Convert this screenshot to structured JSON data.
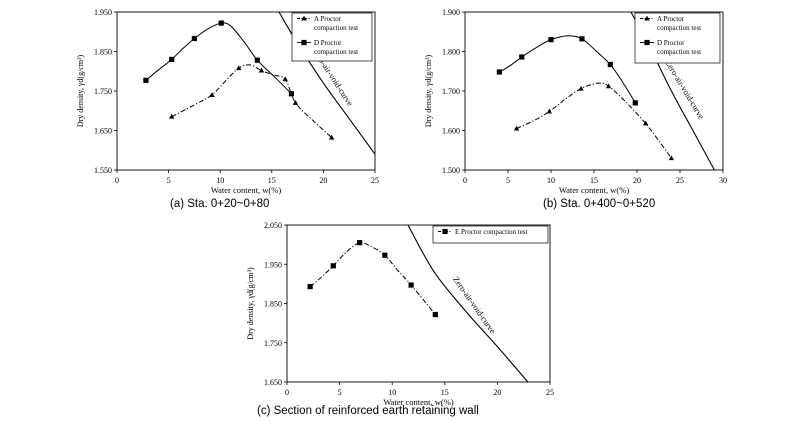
{
  "chart_data": [
    {
      "type": "line",
      "caption": "(a) Sta. 0+20~0+80",
      "xlabel": "Water content, w(%)",
      "ylabel": "Dry density, γd(g/cm³)",
      "xlim": [
        0,
        25
      ],
      "ylim": [
        1.55,
        1.95
      ],
      "xticks": [
        "0",
        "5",
        "10",
        "15",
        "20",
        "25"
      ],
      "yticks": [
        "1.550",
        "1.650",
        "1.750",
        "1.850",
        "1.950"
      ],
      "zav_label": "Zero-air-void-curve",
      "zav_curve": [
        [
          15.7,
          1.95
        ],
        [
          17.5,
          1.87
        ],
        [
          20.0,
          1.77
        ],
        [
          22.5,
          1.68
        ],
        [
          25.0,
          1.59
        ]
      ],
      "series": [
        {
          "name": "A Proctor compaction test",
          "legend_lines": [
            "A Proctor",
            "compaction test"
          ],
          "marker": "triangle",
          "style": "dashdot",
          "points": [
            [
              5.3,
              1.685
            ],
            [
              9.2,
              1.74
            ],
            [
              11.8,
              1.808
            ],
            [
              14.0,
              1.802
            ],
            [
              16.3,
              1.78
            ],
            [
              17.3,
              1.72
            ],
            [
              20.8,
              1.632
            ]
          ],
          "smooth": [
            [
              5.3,
              1.685
            ],
            [
              7.5,
              1.715
            ],
            [
              9.2,
              1.74
            ],
            [
              10.5,
              1.775
            ],
            [
              11.8,
              1.808
            ],
            [
              12.9,
              1.816
            ],
            [
              14.0,
              1.802
            ],
            [
              15.2,
              1.79
            ],
            [
              16.3,
              1.78
            ],
            [
              17.3,
              1.72
            ],
            [
              19.0,
              1.675
            ],
            [
              20.8,
              1.632
            ]
          ]
        },
        {
          "name": "D Proctor compaction test",
          "legend_lines": [
            "D Proctor",
            "compaction test"
          ],
          "marker": "square",
          "style": "solid",
          "points": [
            [
              2.8,
              1.777
            ],
            [
              5.3,
              1.83
            ],
            [
              7.5,
              1.883
            ],
            [
              10.1,
              1.922
            ],
            [
              13.6,
              1.828
            ],
            [
              16.9,
              1.743
            ]
          ],
          "smooth": [
            [
              2.8,
              1.777
            ],
            [
              4.0,
              1.803
            ],
            [
              5.3,
              1.83
            ],
            [
              6.4,
              1.858
            ],
            [
              7.5,
              1.883
            ],
            [
              8.8,
              1.907
            ],
            [
              10.1,
              1.922
            ],
            [
              11.0,
              1.915
            ],
            [
              12.3,
              1.875
            ],
            [
              13.6,
              1.828
            ],
            [
              15.3,
              1.785
            ],
            [
              16.9,
              1.743
            ]
          ]
        }
      ]
    },
    {
      "type": "line",
      "caption": "(b) Sta. 0+400~0+520",
      "xlabel": "Water content, w(%)",
      "ylabel": "Dry density, γd(g/cm³)",
      "xlim": [
        0,
        30
      ],
      "ylim": [
        1.5,
        1.9
      ],
      "xticks": [
        "0",
        "5",
        "10",
        "15",
        "20",
        "25",
        "30"
      ],
      "yticks": [
        "1.500",
        "1.600",
        "1.700",
        "1.800",
        "1.900"
      ],
      "zav_label": "Zero-air-void-curve",
      "zav_curve": [
        [
          19.3,
          1.9
        ],
        [
          21.5,
          1.81
        ],
        [
          24.0,
          1.7
        ],
        [
          26.5,
          1.6
        ],
        [
          29.0,
          1.5
        ]
      ],
      "series": [
        {
          "name": "A Proctor compaction test",
          "legend_lines": [
            "A Proctor",
            "compaction test"
          ],
          "marker": "triangle",
          "style": "dashdot",
          "points": [
            [
              6.0,
              1.605
            ],
            [
              9.8,
              1.648
            ],
            [
              13.5,
              1.706
            ],
            [
              16.7,
              1.712
            ],
            [
              21.0,
              1.618
            ],
            [
              24.0,
              1.53
            ]
          ],
          "smooth": [
            [
              6.0,
              1.605
            ],
            [
              8.0,
              1.625
            ],
            [
              9.8,
              1.648
            ],
            [
              11.7,
              1.68
            ],
            [
              13.5,
              1.706
            ],
            [
              15.5,
              1.72
            ],
            [
              16.7,
              1.712
            ],
            [
              18.8,
              1.67
            ],
            [
              21.0,
              1.618
            ],
            [
              22.5,
              1.575
            ],
            [
              24.0,
              1.53
            ]
          ]
        },
        {
          "name": "D Proctor compaction test",
          "legend_lines": [
            "D Proctor",
            "compaction test"
          ],
          "marker": "square",
          "style": "solid",
          "points": [
            [
              4.0,
              1.748
            ],
            [
              6.6,
              1.786
            ],
            [
              10.0,
              1.83
            ],
            [
              13.6,
              1.832
            ],
            [
              16.9,
              1.767
            ],
            [
              19.8,
              1.67
            ]
          ],
          "smooth": [
            [
              4.0,
              1.748
            ],
            [
              5.3,
              1.765
            ],
            [
              6.6,
              1.786
            ],
            [
              8.3,
              1.81
            ],
            [
              10.0,
              1.83
            ],
            [
              12.0,
              1.84
            ],
            [
              13.6,
              1.832
            ],
            [
              15.3,
              1.8
            ],
            [
              16.9,
              1.767
            ],
            [
              18.4,
              1.72
            ],
            [
              19.8,
              1.67
            ]
          ]
        }
      ]
    },
    {
      "type": "line",
      "caption": "(c) Section of reinforced earth retaining wall",
      "xlabel": "Water content, w(%)",
      "ylabel": "Dry density, γd(g/cm³)",
      "xlim": [
        0,
        25
      ],
      "ylim": [
        1.65,
        2.05
      ],
      "xticks": [
        "0",
        "5",
        "10",
        "15",
        "20",
        "25"
      ],
      "yticks": [
        "1.650",
        "1.750",
        "1.850",
        "1.950",
        "2.050"
      ],
      "zav_label": "Zero-air-void-curve",
      "zav_curve": [
        [
          11.5,
          2.05
        ],
        [
          14.0,
          1.93
        ],
        [
          17.0,
          1.83
        ],
        [
          20.0,
          1.74
        ],
        [
          22.9,
          1.65
        ]
      ],
      "series": [
        {
          "name": "E Proctor compaction test",
          "legend_lines": [
            "E Proctor compaction test"
          ],
          "marker": "square",
          "style": "dashdot",
          "points": [
            [
              2.2,
              1.893
            ],
            [
              4.4,
              1.946
            ],
            [
              6.9,
              2.005
            ],
            [
              9.3,
              1.973
            ],
            [
              11.8,
              1.897
            ],
            [
              14.1,
              1.822
            ]
          ],
          "smooth": [
            [
              2.2,
              1.893
            ],
            [
              3.3,
              1.918
            ],
            [
              4.4,
              1.946
            ],
            [
              5.6,
              1.98
            ],
            [
              6.9,
              2.005
            ],
            [
              8.0,
              1.995
            ],
            [
              9.3,
              1.973
            ],
            [
              10.5,
              1.935
            ],
            [
              11.8,
              1.897
            ],
            [
              14.1,
              1.822
            ]
          ]
        }
      ]
    }
  ]
}
